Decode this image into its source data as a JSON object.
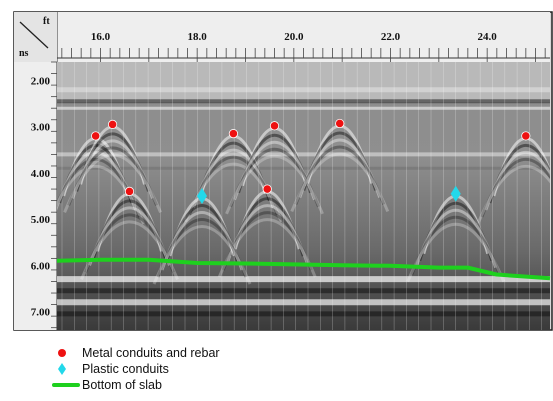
{
  "unit_top": "ft",
  "unit_left": "ns",
  "x_ticks": [
    "16.0",
    "18.0",
    "20.0",
    "22.0",
    "24.0"
  ],
  "y_ticks": [
    "2.00",
    "3.00",
    "4.00",
    "5.00",
    "6.00",
    "7.00"
  ],
  "legend": [
    {
      "label": "Metal conduits and rebar",
      "symbol": "red-dot",
      "color": "#ee1111"
    },
    {
      "label": "Plastic conduits",
      "symbol": "cyan-diamond",
      "color": "#22d8ea"
    },
    {
      "label": "Bottom of slab",
      "symbol": "green-line",
      "color": "#1ed01e"
    }
  ],
  "chart_data": {
    "type": "scatter",
    "xlabel": "ft",
    "ylabel": "ns",
    "xlim": [
      15.1,
      25.3
    ],
    "ylim": [
      1.6,
      7.4
    ],
    "series": [
      {
        "name": "Metal conduits and rebar",
        "points": [
          [
            15.9,
            3.2
          ],
          [
            16.25,
            2.95
          ],
          [
            16.6,
            4.4
          ],
          [
            18.75,
            3.15
          ],
          [
            19.45,
            4.35
          ],
          [
            19.6,
            2.98
          ],
          [
            20.95,
            2.93
          ],
          [
            24.8,
            3.2
          ]
        ]
      },
      {
        "name": "Plastic conduits",
        "points": [
          [
            18.1,
            4.5
          ],
          [
            23.35,
            4.45
          ]
        ]
      },
      {
        "name": "Bottom of slab",
        "points": [
          [
            15.1,
            5.9
          ],
          [
            16.0,
            5.88
          ],
          [
            17.0,
            5.88
          ],
          [
            18.0,
            5.95
          ],
          [
            19.0,
            5.96
          ],
          [
            20.0,
            5.98
          ],
          [
            21.0,
            6.0
          ],
          [
            22.0,
            6.01
          ],
          [
            23.0,
            6.05
          ],
          [
            23.6,
            6.05
          ],
          [
            24.2,
            6.2
          ],
          [
            25.3,
            6.28
          ]
        ]
      }
    ]
  }
}
